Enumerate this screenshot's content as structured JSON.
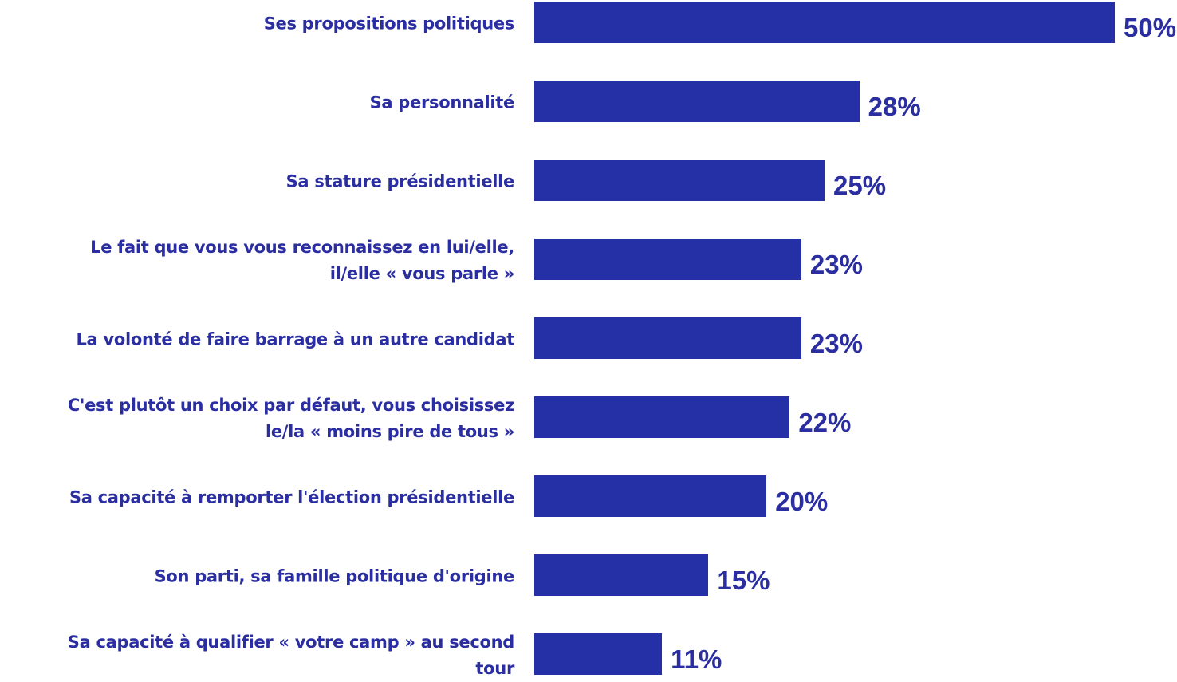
{
  "chart_data": {
    "type": "bar",
    "orientation": "horizontal",
    "categories": [
      "Ses propositions politiques",
      "Sa personnalité",
      "Sa stature présidentielle",
      "Le fait que vous vous reconnaissez en lui/elle,\nil/elle « vous parle »",
      "La volonté de faire barrage à un autre candidat",
      "C'est plutôt un choix par défaut, vous choisissez\nle/la « moins pire de tous »",
      "Sa capacité à remporter l'élection présidentielle",
      "Son parti, sa famille politique d'origine",
      "Sa capacité à qualifier « votre camp » au second\ntour"
    ],
    "values": [
      50,
      28,
      25,
      23,
      23,
      22,
      20,
      15,
      11
    ],
    "value_labels": [
      "50%",
      "28%",
      "25%",
      "23%",
      "23%",
      "22%",
      "20%",
      "15%",
      "11%"
    ],
    "color": "#2630a6",
    "xlim": [
      0,
      50
    ]
  }
}
